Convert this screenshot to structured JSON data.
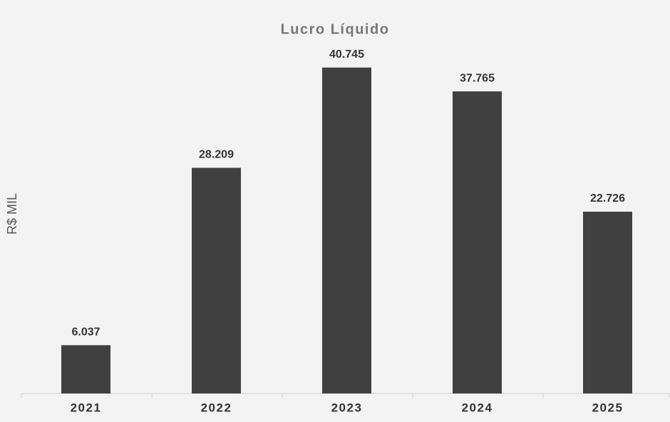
{
  "chart_data": {
    "type": "bar",
    "title": "Lucro Líquido",
    "y_label": "R$ MIL",
    "categories": [
      "2021",
      "2022",
      "2023",
      "2024",
      "2025"
    ],
    "values": [
      6037,
      28209,
      40745,
      37765,
      22726
    ],
    "value_labels": [
      "6.037",
      "28.209",
      "40.745",
      "37.765",
      "22.726"
    ],
    "color": "#404040",
    "ylim": [
      0,
      45000
    ],
    "grid": false
  }
}
